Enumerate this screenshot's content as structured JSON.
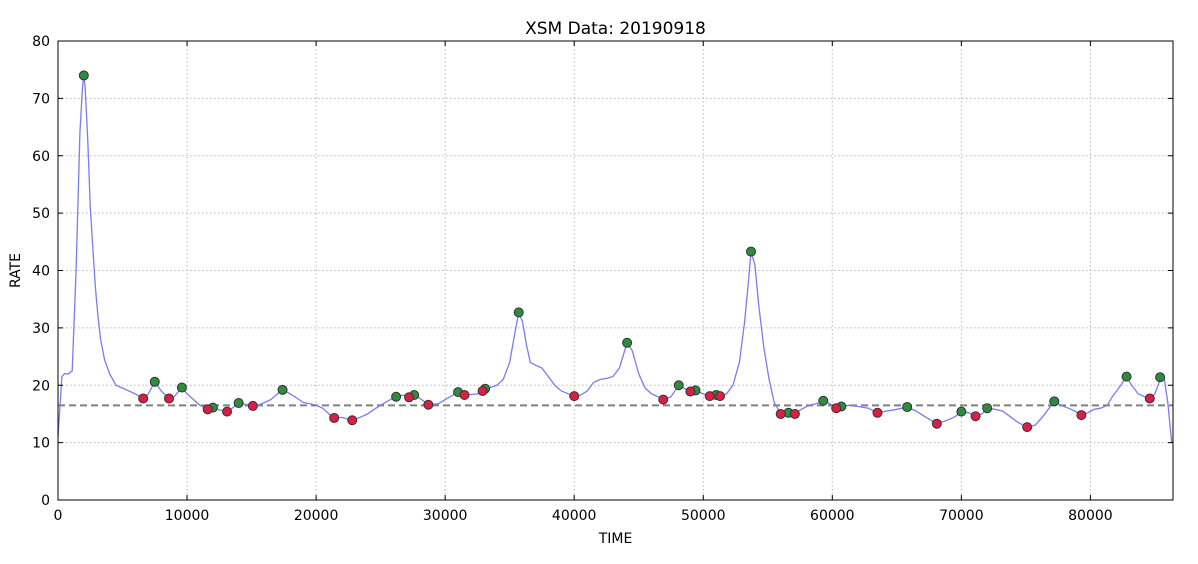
{
  "chart_data": {
    "type": "line",
    "title": "XSM Data: 20190918",
    "xlabel": "TIME",
    "ylabel": "RATE",
    "xlim": [
      0,
      86400
    ],
    "ylim": [
      0,
      80
    ],
    "xticks": [
      0,
      10000,
      20000,
      30000,
      40000,
      50000,
      60000,
      70000,
      80000
    ],
    "yticks": [
      0,
      10,
      20,
      30,
      40,
      50,
      60,
      70,
      80
    ],
    "grid": true,
    "reference_line": {
      "y": 16.5,
      "style": "dashed",
      "color": "#808080"
    },
    "series": [
      {
        "kind": "line",
        "color": "#7b7bf2",
        "x": [
          0,
          300,
          500,
          800,
          1100,
          1400,
          1700,
          1900,
          2000,
          2100,
          2300,
          2500,
          2700,
          2900,
          3100,
          3300,
          3600,
          4000,
          4500,
          5000,
          5500,
          6000,
          6600,
          7000,
          7500,
          8000,
          8600,
          9000,
          9600,
          10000,
          10500,
          11000,
          11600,
          12000,
          12500,
          13100,
          13500,
          14000,
          14500,
          15000,
          15500,
          16000,
          16500,
          17000,
          17400,
          18000,
          18500,
          19000,
          19500,
          20000,
          20500,
          21000,
          21400,
          22000,
          22800,
          23500,
          24000,
          24500,
          25000,
          25500,
          26200,
          26800,
          27200,
          27600,
          28000,
          28700,
          29500,
          30000,
          31000,
          31500,
          32500,
          32900,
          33100,
          33500,
          34000,
          34500,
          35000,
          35400,
          35700,
          36000,
          36300,
          36600,
          37000,
          37500,
          38000,
          38500,
          39000,
          40000,
          40500,
          41000,
          41500,
          42000,
          42500,
          43000,
          43500,
          44100,
          44500,
          45000,
          45500,
          46000,
          46500,
          46900,
          47500,
          48100,
          48500,
          49000,
          49400,
          50000,
          50500,
          50800,
          51000,
          51300,
          51800,
          52300,
          52800,
          53200,
          53500,
          53700,
          54000,
          54300,
          54700,
          55100,
          55500,
          56000,
          56600,
          57100,
          57600,
          58200,
          58800,
          59300,
          59800,
          60300,
          60700,
          61300,
          62000,
          62800,
          63500,
          64200,
          65000,
          65800,
          66500,
          67200,
          68100,
          68800,
          69500,
          70000,
          70600,
          71100,
          71600,
          72000,
          72600,
          73200,
          73800,
          74400,
          75100,
          75700,
          76300,
          76800,
          77200,
          77700,
          78300,
          78800,
          79300,
          79800,
          80300,
          80800,
          81300,
          81700,
          82200,
          82800,
          83200,
          83700,
          84200,
          84600,
          85000,
          85400,
          85700,
          86000,
          86300
        ],
        "values": [
          11,
          21.5,
          22,
          22,
          22.5,
          40,
          64,
          72,
          74,
          72,
          63,
          51,
          44,
          37,
          32,
          28,
          24.5,
          22,
          20,
          19.5,
          19,
          18.5,
          17.7,
          18.5,
          20.6,
          19,
          17.7,
          18,
          19.6,
          18.5,
          17.5,
          16.5,
          15.8,
          16.1,
          15.7,
          15.4,
          16,
          16.9,
          16.7,
          16.4,
          16.5,
          17,
          17.5,
          18.5,
          19.2,
          18.5,
          17.8,
          17,
          16.8,
          16.5,
          16,
          15,
          14.3,
          14.4,
          13.9,
          14.5,
          15,
          15.8,
          16.5,
          17.2,
          18,
          18.3,
          17.9,
          18.3,
          17.8,
          16.6,
          16.8,
          17.5,
          18.8,
          18.3,
          18.5,
          19,
          19.4,
          19.6,
          20,
          21,
          24,
          29,
          32.7,
          31,
          27,
          24,
          23.5,
          23,
          21.5,
          20,
          19,
          18.1,
          18.3,
          19,
          20.5,
          21,
          21.2,
          21.5,
          23,
          27.4,
          26,
          22,
          19.5,
          18.5,
          18,
          17.5,
          18,
          20,
          19.5,
          18.8,
          19.1,
          18.5,
          18,
          18.2,
          18.3,
          18.1,
          18.5,
          20,
          24,
          31,
          38,
          43.3,
          41,
          34,
          26.5,
          21,
          17,
          15.1,
          15.2,
          15.1,
          15.8,
          16.5,
          16.8,
          17.3,
          16.8,
          16,
          16.3,
          16.5,
          16.3,
          16,
          15.2,
          15.5,
          15.8,
          16.2,
          15.5,
          14.5,
          13.3,
          13.8,
          14.5,
          15.4,
          15.2,
          14.6,
          15,
          16,
          15.8,
          15.5,
          14.5,
          13.5,
          12.7,
          13,
          14.5,
          16,
          17.2,
          16.5,
          16,
          15.5,
          14.8,
          15.2,
          15.8,
          16,
          16.5,
          18,
          19.5,
          21.5,
          20,
          18.5,
          18,
          17.7,
          18.5,
          21,
          21.4,
          17,
          10
        ]
      },
      {
        "kind": "points",
        "name": "green",
        "color": "#2e8b40",
        "x": [
          2000,
          7500,
          9600,
          12000,
          14000,
          17400,
          26200,
          27600,
          31000,
          33100,
          35700,
          44100,
          48100,
          49400,
          51000,
          53700,
          56600,
          59300,
          60700,
          65800,
          70000,
          72000,
          77200,
          82800,
          85400
        ],
        "values": [
          74,
          20.6,
          19.6,
          16.1,
          16.9,
          19.2,
          18,
          18.3,
          18.8,
          19.4,
          32.7,
          27.4,
          20,
          19.1,
          18.3,
          43.3,
          15.2,
          17.3,
          16.3,
          16.2,
          15.4,
          16,
          17.2,
          21.5,
          21.4
        ]
      },
      {
        "kind": "points",
        "name": "red",
        "color": "#dc1e45",
        "x": [
          6600,
          8600,
          11600,
          13100,
          15100,
          21400,
          22800,
          27200,
          28700,
          31500,
          32900,
          40000,
          46900,
          49000,
          50500,
          51300,
          56000,
          57100,
          60300,
          63500,
          68100,
          71100,
          75100,
          79300,
          84600
        ],
        "values": [
          17.7,
          17.7,
          15.8,
          15.4,
          16.4,
          14.3,
          13.9,
          17.9,
          16.6,
          18.3,
          19,
          18.1,
          17.5,
          18.9,
          18.1,
          18.1,
          15,
          15,
          16,
          15.2,
          13.3,
          14.6,
          12.7,
          14.8,
          17.7
        ]
      }
    ]
  }
}
